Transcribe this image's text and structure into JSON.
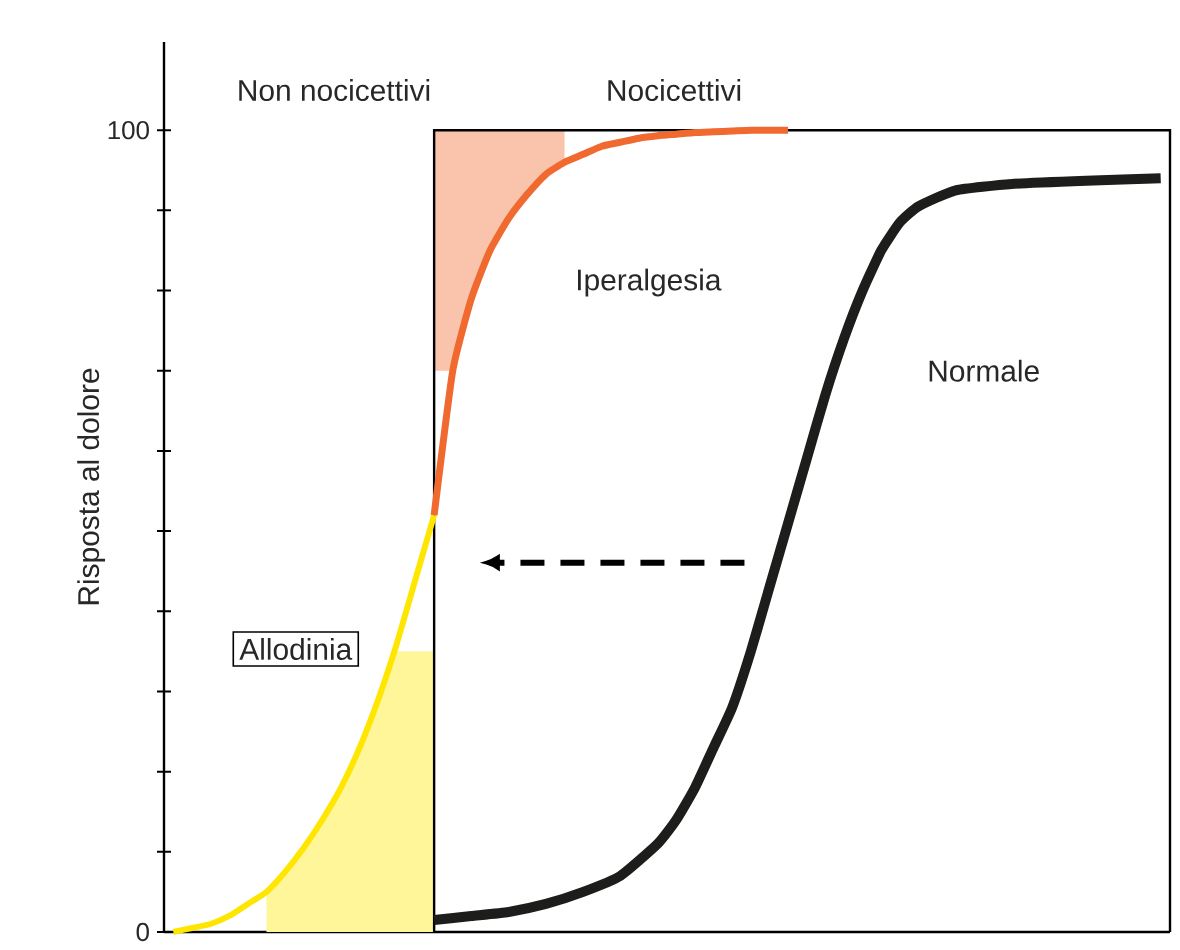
{
  "chart_data": {
    "type": "line",
    "ylabel": "Risposta al dolore",
    "categories": [
      null,
      null,
      null,
      null,
      null,
      null,
      null,
      null,
      null,
      null,
      null,
      null,
      null,
      null,
      null,
      null,
      null,
      null,
      null,
      null,
      null,
      null,
      null,
      null,
      null,
      null,
      null,
      null,
      null,
      null,
      null,
      null,
      null,
      null,
      null,
      null,
      null,
      null,
      null,
      null,
      null,
      null,
      null,
      null,
      null,
      null,
      null,
      null,
      null,
      null,
      null,
      null,
      null,
      null
    ],
    "series": [
      {
        "name": "Allodinia",
        "color": "#ffe600",
        "values": [
          0,
          0.5,
          1,
          2,
          3.5,
          5,
          7.5,
          10.5,
          14,
          18,
          23,
          29,
          36,
          44,
          52,
          null,
          null,
          null,
          null,
          null,
          null,
          null,
          null,
          null,
          null,
          null,
          null,
          null,
          null,
          null,
          null,
          null,
          null,
          null,
          null,
          null,
          null,
          null,
          null,
          null,
          null,
          null,
          null,
          null,
          null,
          null,
          null,
          null,
          null,
          null,
          null,
          null,
          null,
          null
        ],
        "lower": [
          null,
          null,
          null,
          null,
          null,
          0,
          0,
          0,
          0,
          0,
          0,
          0,
          0,
          0,
          0,
          null,
          null,
          null,
          null,
          null,
          null,
          null,
          null,
          null,
          null,
          null,
          null,
          null,
          null,
          null,
          null,
          null,
          null,
          null,
          null,
          null,
          null,
          null,
          null,
          null,
          null,
          null,
          null,
          null,
          null,
          null,
          null,
          null,
          null,
          null,
          null,
          null,
          null,
          null
        ],
        "upper": [
          null,
          null,
          null,
          null,
          null,
          5,
          7.5,
          10.5,
          14,
          18,
          23,
          29,
          35,
          35,
          35,
          null,
          null,
          null,
          null,
          null,
          null,
          null,
          null,
          null,
          null,
          null,
          null,
          null,
          null,
          null,
          null,
          null,
          null,
          null,
          null,
          null,
          null,
          null,
          null,
          null,
          null,
          null,
          null,
          null,
          null,
          null,
          null,
          null,
          null,
          null,
          null,
          null,
          null,
          null
        ]
      },
      {
        "name": "Iperalgesia",
        "color": "#f06a30",
        "values": [
          null,
          null,
          null,
          null,
          null,
          null,
          null,
          null,
          null,
          null,
          null,
          null,
          null,
          null,
          52,
          70,
          79,
          85,
          89,
          92,
          94.5,
          96,
          97,
          98,
          98.5,
          99,
          99.3,
          99.5,
          99.7,
          99.8,
          99.9,
          100,
          100,
          100,
          null,
          null,
          null,
          null,
          null,
          null,
          null,
          null,
          null,
          null,
          null,
          null,
          null,
          null,
          null,
          null,
          null,
          null,
          null,
          null
        ],
        "lower": [
          null,
          null,
          null,
          null,
          null,
          null,
          null,
          null,
          null,
          null,
          null,
          null,
          null,
          null,
          70,
          70,
          79,
          85,
          89,
          92,
          94.5,
          96,
          null,
          null,
          null,
          null,
          null,
          null,
          null,
          null,
          null,
          null,
          null,
          null,
          null,
          null,
          null,
          null,
          null,
          null,
          null,
          null,
          null,
          null,
          null,
          null,
          null,
          null,
          null,
          null,
          null,
          null,
          null,
          null
        ],
        "upper": [
          null,
          null,
          null,
          null,
          null,
          null,
          null,
          null,
          null,
          null,
          null,
          null,
          null,
          null,
          100,
          100,
          100,
          100,
          100,
          100,
          100,
          100,
          null,
          null,
          null,
          null,
          null,
          null,
          null,
          null,
          null,
          null,
          null,
          null,
          null,
          null,
          null,
          null,
          null,
          null,
          null,
          null,
          null,
          null,
          null,
          null,
          null,
          null,
          null,
          null,
          null,
          null,
          null,
          null
        ]
      },
      {
        "name": "Normale",
        "color": "#1d1d1b",
        "values": [
          null,
          null,
          null,
          null,
          null,
          null,
          null,
          null,
          null,
          null,
          null,
          null,
          null,
          null,
          1.5,
          null,
          2,
          null,
          2.5,
          null,
          3.5,
          null,
          5,
          null,
          7,
          null,
          11,
          14,
          18,
          23,
          28,
          35,
          43,
          51,
          59,
          67,
          74,
          80,
          85,
          88.5,
          90.5,
          null,
          92.5,
          null,
          null,
          93.3,
          null,
          null,
          null,
          93.7,
          null,
          null,
          null,
          94
        ]
      }
    ],
    "ylim": [
      0,
      111
    ],
    "yticks": [
      0,
      {
        "value": 10,
        "label": null
      },
      {
        "value": 20,
        "label": null
      },
      {
        "value": 30,
        "label": null
      },
      {
        "value": 40,
        "label": null
      },
      {
        "value": 50,
        "label": null
      },
      {
        "value": 60,
        "label": null
      },
      {
        "value": 70,
        "label": null
      },
      {
        "value": 80,
        "label": null
      },
      {
        "value": 90,
        "label": null
      },
      100
    ],
    "tick_labels": "y",
    "annotations": [
      "Non nocicettivi",
      "Nocicettivi"
    ]
  }
}
